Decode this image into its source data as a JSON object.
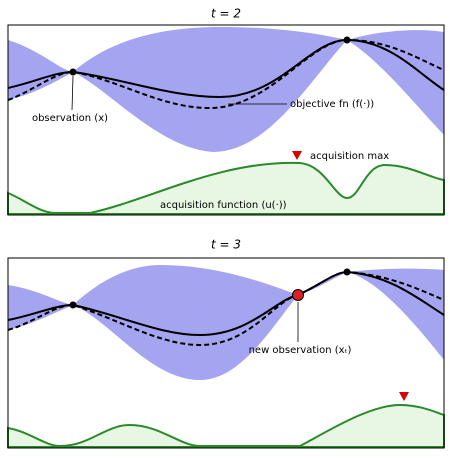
{
  "panels": [
    {
      "title": "t = 2",
      "annotations": [
        "observation (x)",
        "objective fn (f(·))",
        "acquisition max",
        "acquisition function (u(·))"
      ]
    },
    {
      "title": "t = 3",
      "annotations": [
        "new observation (xₜ)"
      ]
    }
  ]
}
